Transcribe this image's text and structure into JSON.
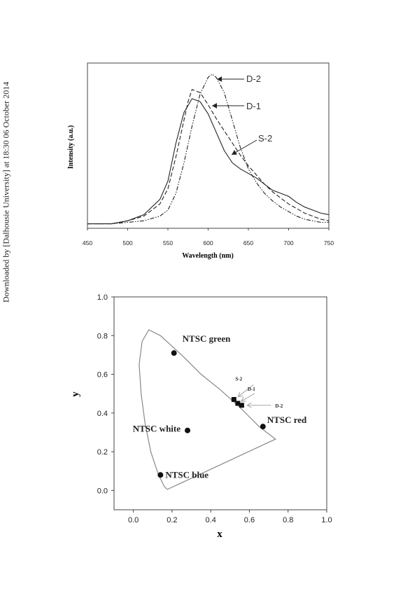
{
  "side_note": "Downloaded by [Dalhousie University] at 18:30 06 October 2014",
  "chart_data": [
    {
      "type": "line",
      "xlabel": "Wavelength (nm)",
      "ylabel": "Intensity (a.u.)",
      "xlim": [
        450,
        750
      ],
      "xticks": [
        "450",
        "500",
        "550",
        "600",
        "650",
        "700",
        "750"
      ],
      "series": [
        {
          "name": "D-2",
          "style": "dash-dot-dot",
          "x": [
            450,
            480,
            500,
            520,
            540,
            550,
            560,
            570,
            580,
            590,
            600,
            605,
            610,
            620,
            630,
            640,
            650,
            660,
            670,
            680,
            690,
            700,
            710,
            720,
            730,
            740,
            750
          ],
          "y": [
            0.02,
            0.02,
            0.03,
            0.04,
            0.07,
            0.11,
            0.22,
            0.42,
            0.66,
            0.87,
            0.98,
            1.0,
            0.98,
            0.88,
            0.7,
            0.52,
            0.38,
            0.29,
            0.22,
            0.17,
            0.13,
            0.1,
            0.07,
            0.05,
            0.04,
            0.03,
            0.03
          ]
        },
        {
          "name": "D-1",
          "style": "dash",
          "x": [
            450,
            480,
            500,
            520,
            540,
            550,
            560,
            570,
            575,
            580,
            590,
            600,
            610,
            620,
            630,
            640,
            650,
            660,
            670,
            680,
            690,
            700,
            710,
            720,
            730,
            740,
            750
          ],
          "y": [
            0.02,
            0.02,
            0.04,
            0.07,
            0.15,
            0.25,
            0.46,
            0.7,
            0.82,
            0.9,
            0.88,
            0.8,
            0.71,
            0.63,
            0.55,
            0.47,
            0.4,
            0.34,
            0.28,
            0.23,
            0.19,
            0.15,
            0.12,
            0.09,
            0.07,
            0.05,
            0.04
          ]
        },
        {
          "name": "S-2",
          "style": "solid",
          "x": [
            450,
            480,
            500,
            520,
            540,
            550,
            560,
            570,
            580,
            590,
            600,
            610,
            620,
            630,
            640,
            650,
            660,
            670,
            680,
            690,
            700,
            710,
            720,
            730,
            740,
            750
          ],
          "y": [
            0.02,
            0.02,
            0.04,
            0.08,
            0.18,
            0.3,
            0.55,
            0.75,
            0.84,
            0.82,
            0.74,
            0.62,
            0.5,
            0.42,
            0.38,
            0.35,
            0.32,
            0.28,
            0.24,
            0.22,
            0.2,
            0.16,
            0.13,
            0.11,
            0.09,
            0.08
          ]
        }
      ],
      "annotations": [
        {
          "text": "D-2",
          "series": "D-2"
        },
        {
          "text": "D-1",
          "series": "D-1"
        },
        {
          "text": "S-2",
          "series": "S-2"
        }
      ]
    },
    {
      "type": "scatter",
      "xlabel": "x",
      "ylabel": "y",
      "xlim": [
        -0.1,
        1.0
      ],
      "ylim": [
        -0.1,
        1.0
      ],
      "xticks": [
        "0.0",
        "0.2",
        "0.4",
        "0.6",
        "0.8",
        "1.0"
      ],
      "yticks": [
        "0.0",
        "0.2",
        "0.4",
        "0.6",
        "0.8",
        "1.0"
      ],
      "gamut_outline": [
        [
          0.175,
          0.005
        ],
        [
          0.16,
          0.02
        ],
        [
          0.13,
          0.08
        ],
        [
          0.09,
          0.2
        ],
        [
          0.06,
          0.35
        ],
        [
          0.04,
          0.5
        ],
        [
          0.03,
          0.65
        ],
        [
          0.045,
          0.77
        ],
        [
          0.08,
          0.83
        ],
        [
          0.14,
          0.8
        ],
        [
          0.26,
          0.69
        ],
        [
          0.35,
          0.6
        ],
        [
          0.45,
          0.52
        ],
        [
          0.55,
          0.43
        ],
        [
          0.65,
          0.33
        ],
        [
          0.735,
          0.265
        ],
        [
          0.175,
          0.005
        ]
      ],
      "points": [
        {
          "label": "NTSC green",
          "x": 0.21,
          "y": 0.71,
          "marker": "circle"
        },
        {
          "label": "NTSC white",
          "x": 0.28,
          "y": 0.31,
          "marker": "circle"
        },
        {
          "label": "NTSC red",
          "x": 0.67,
          "y": 0.33,
          "marker": "circle"
        },
        {
          "label": "NTSC blue",
          "x": 0.14,
          "y": 0.08,
          "marker": "circle"
        },
        {
          "label": "S-2",
          "x": 0.52,
          "y": 0.47,
          "marker": "square"
        },
        {
          "label": "D-1",
          "x": 0.54,
          "y": 0.45,
          "marker": "square"
        },
        {
          "label": "D-2",
          "x": 0.56,
          "y": 0.44,
          "marker": "square"
        }
      ]
    }
  ]
}
